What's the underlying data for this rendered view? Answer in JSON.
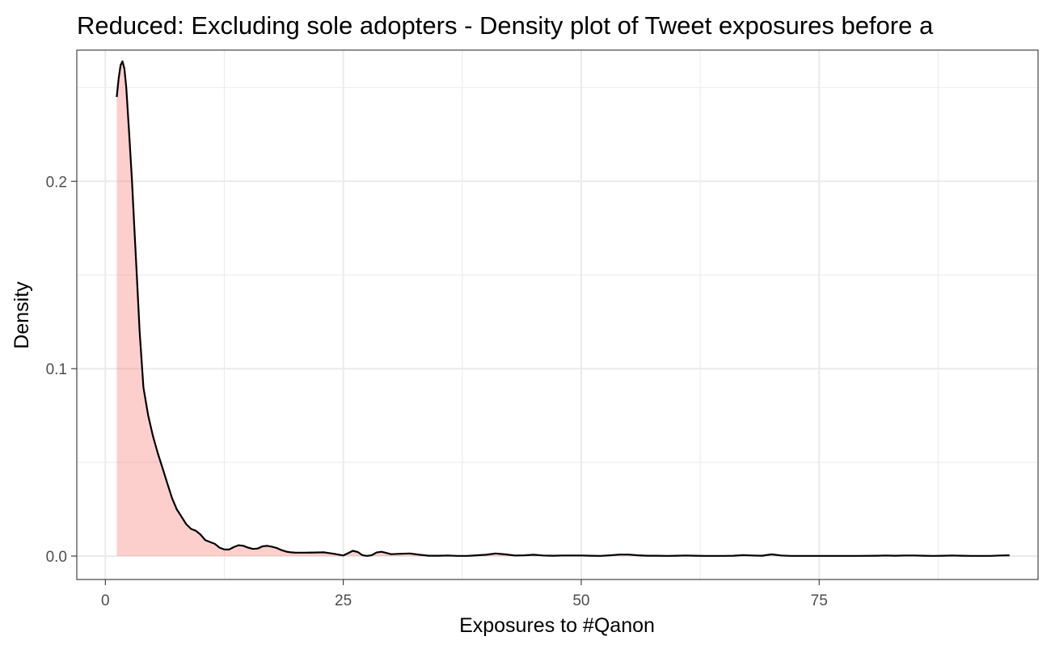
{
  "chart_data": {
    "type": "area",
    "title": "Reduced: Excluding sole adopters - Density plot of Tweet exposures before a",
    "xlabel": "Exposures to #Qanon",
    "ylabel": "Density",
    "xlim": [
      -3,
      98
    ],
    "ylim": [
      -0.0125,
      0.27
    ],
    "x_ticks": [
      0,
      25,
      50,
      75
    ],
    "x_tick_labels": [
      "0",
      "25",
      "50",
      "75"
    ],
    "y_ticks": [
      0,
      0.1,
      0.2
    ],
    "y_tick_labels": [
      "0.0",
      "0.1",
      "0.2"
    ],
    "grid": true,
    "fill_color": "#f8766d",
    "fill_opacity": 0.35,
    "line_color": "#000000",
    "series": [
      {
        "x": [
          1.2,
          1.4,
          1.6,
          1.8,
          2.0,
          2.2,
          2.5,
          2.8,
          3.0,
          3.3,
          3.6,
          4.0,
          4.5,
          5.0,
          5.5,
          6.0,
          6.5,
          7.0,
          7.5,
          8.0,
          8.5,
          9.0,
          9.5,
          10.0,
          10.5,
          11.0,
          11.5,
          12.0,
          12.5,
          13.0,
          13.5,
          14.0,
          14.5,
          15.0,
          15.5,
          16.0,
          16.5,
          17.0,
          17.5,
          18.0,
          18.5,
          19.0,
          19.5,
          20.0,
          21.0,
          22.0,
          23.0,
          24.0,
          25.0,
          25.5,
          26.0,
          26.5,
          27.0,
          27.5,
          28.0,
          28.5,
          29.0,
          29.5,
          30.0,
          31.0,
          32.0,
          33.0,
          34.0,
          35.0,
          36.0,
          37.0,
          38.0,
          39.0,
          40.0,
          41.0,
          42.0,
          43.0,
          44.0,
          45.0,
          46.0,
          47.0,
          48.0,
          49.0,
          50.0,
          51.0,
          52.0,
          53.0,
          54.0,
          55.0,
          56.0,
          57.0,
          58.0,
          59.0,
          60.0,
          61.0,
          62.0,
          63.0,
          64.0,
          65.0,
          66.0,
          67.0,
          68.0,
          69.0,
          70.0,
          71.0,
          72.0,
          73.0,
          75.0,
          77.0,
          79.0,
          81.0,
          82.0,
          83.0,
          84.0,
          85.0,
          86.0,
          87.0,
          88.0,
          89.0,
          90.0,
          91.0,
          92.0,
          93.0,
          94.0,
          95.0
        ],
        "y": [
          0.245,
          0.255,
          0.262,
          0.264,
          0.26,
          0.25,
          0.226,
          0.2,
          0.18,
          0.15,
          0.12,
          0.09,
          0.075,
          0.064,
          0.055,
          0.047,
          0.039,
          0.031,
          0.025,
          0.021,
          0.017,
          0.0145,
          0.0135,
          0.0115,
          0.0085,
          0.0075,
          0.0065,
          0.0045,
          0.0035,
          0.0035,
          0.0048,
          0.0058,
          0.0055,
          0.0045,
          0.0038,
          0.004,
          0.0052,
          0.0055,
          0.005,
          0.0043,
          0.0032,
          0.0024,
          0.002,
          0.0018,
          0.0018,
          0.0019,
          0.002,
          0.0012,
          0.0003,
          0.0015,
          0.0028,
          0.0022,
          0.0005,
          0.0001,
          0.0005,
          0.0019,
          0.0023,
          0.0017,
          0.001,
          0.0012,
          0.0014,
          0.0007,
          0.0002,
          0.0002,
          0.0003,
          0.0001,
          0.0001,
          0.0004,
          0.0007,
          0.0014,
          0.0009,
          0.0003,
          0.0004,
          0.0007,
          0.0003,
          0.0002,
          0.0003,
          0.0003,
          0.0003,
          0.0002,
          0.0001,
          0.0004,
          0.0008,
          0.0008,
          0.0004,
          0.0002,
          0.0002,
          0.0001,
          0.0002,
          0.0003,
          0.0002,
          0.0001,
          0.0001,
          0.0001,
          0.0002,
          0.0005,
          0.0003,
          0.0002,
          0.0009,
          0.0003,
          0.0001,
          0.0001,
          0.0001,
          0.0001,
          0.0001,
          0.0002,
          0.0003,
          0.0002,
          0.0003,
          0.0003,
          0.0002,
          0.0001,
          0.0002,
          0.0003,
          0.0002,
          0.0001,
          0.0001,
          0.0001,
          0.0003,
          0.0004
        ]
      }
    ]
  }
}
